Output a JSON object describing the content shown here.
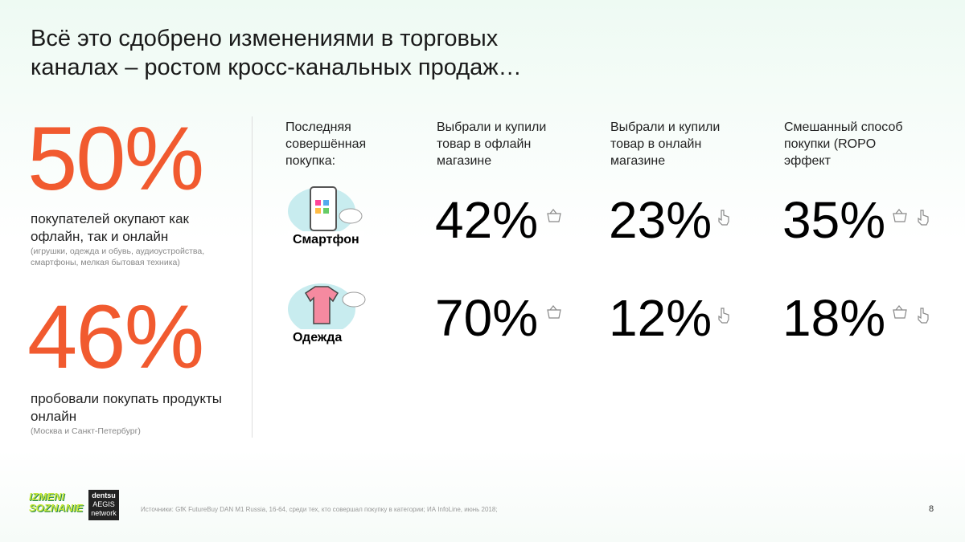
{
  "title": "Всё это сдобрено изменениями в торговых каналах – ростом кросс-канальных продаж…",
  "stats": [
    {
      "value": "50%",
      "label": "покупателей окупают как офлайн, так и онлайн",
      "note": "(игрушки, одежда и обувь, аудиоустройства, смартфоны, мелкая бытовая техника)"
    },
    {
      "value": "46%",
      "label": "пробовали покупать продукты онлайн",
      "note": "(Москва и Санкт-Петербург)"
    }
  ],
  "table": {
    "headers": [
      "Последняя совершённая покупка:",
      "Выбрали и купили товар в офлайн магазине",
      "Выбрали и купили товар в онлайн магазине",
      "Смешанный способ покупки (ROPO эффект"
    ],
    "rows": [
      [
        "Смартфон",
        "42%",
        "23%",
        "35%"
      ],
      [
        "Одежда",
        "70%",
        "12%",
        "18%"
      ]
    ]
  },
  "footer": {
    "logo": "IZMENI SOZNANIE",
    "network": [
      "dentsu",
      "AEGIS",
      "network"
    ],
    "source": "Источники: GfK FutureBuy DAN M1 Russia, 16-64, среди тех, кто совершал покупку в категории; ИА InfoLine, июнь 2018;",
    "page": "8"
  }
}
